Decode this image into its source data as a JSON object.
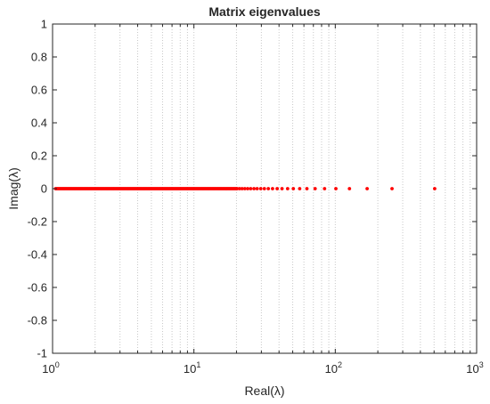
{
  "chart_data": {
    "type": "scatter",
    "title": "Matrix eigenvalues",
    "xlabel": "Real(λ)",
    "ylabel": "Imag(λ)",
    "x_scale": "log",
    "xlim": [
      1,
      1000
    ],
    "ylim": [
      -1,
      1
    ],
    "grid": "x minor and major dotted",
    "marker_color": "#ff0000",
    "x_ticks": [
      {
        "value": 1,
        "base": "10",
        "exp": "0"
      },
      {
        "value": 10,
        "base": "10",
        "exp": "1"
      },
      {
        "value": 100,
        "base": "10",
        "exp": "2"
      },
      {
        "value": 1000,
        "base": "10",
        "exp": "3"
      }
    ],
    "y_ticks": [
      "-1",
      "-0.8",
      "-0.6",
      "-0.4",
      "-0.2",
      "0",
      "0.2",
      "0.4",
      "0.6",
      "0.8",
      "1"
    ],
    "series": [
      {
        "x": [
          505,
          252,
          168,
          126,
          101,
          84,
          72,
          63,
          56,
          50.5,
          46,
          42,
          38.8,
          36,
          33.6,
          31.5,
          29.7,
          28,
          26.6,
          25.2,
          24,
          22.9,
          21.9,
          21,
          20.2
        ],
        "y": [
          0,
          0,
          0,
          0,
          0,
          0,
          0,
          0,
          0,
          0,
          0,
          0,
          0,
          0,
          0,
          0,
          0,
          0,
          0,
          0,
          0,
          0,
          0,
          0,
          0
        ]
      },
      {
        "x_dense_range": [
          1.05,
          20
        ],
        "y": 0
      }
    ]
  }
}
